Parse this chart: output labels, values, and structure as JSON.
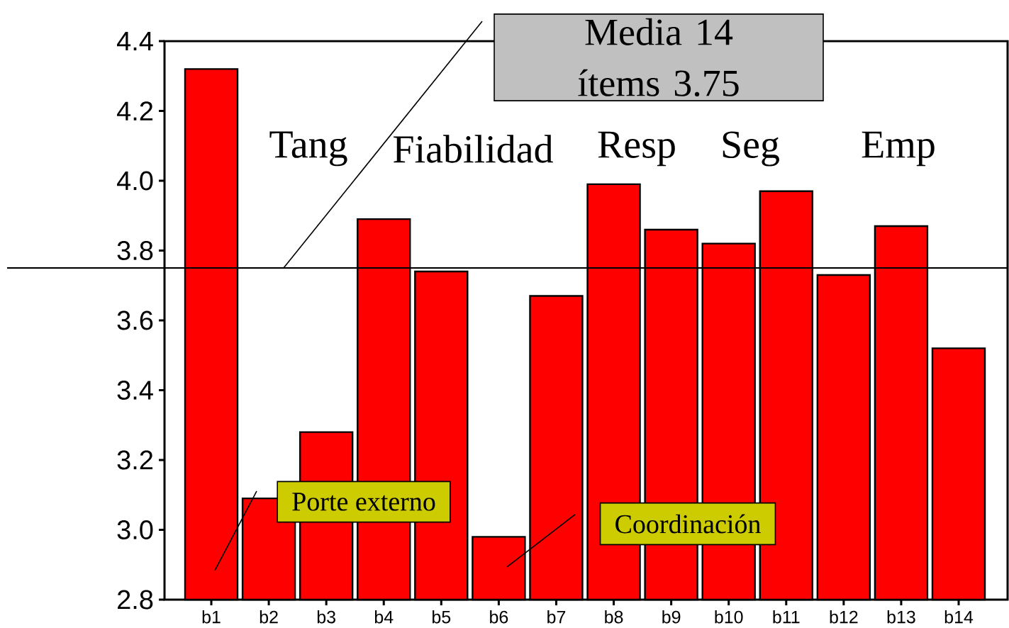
{
  "chart_data": {
    "type": "bar",
    "categories": [
      "b1",
      "b2",
      "b3",
      "b4",
      "b5",
      "b6",
      "b7",
      "b8",
      "b9",
      "b10",
      "b11",
      "b12",
      "b13",
      "b14"
    ],
    "values": [
      4.32,
      3.09,
      3.28,
      3.89,
      3.74,
      2.98,
      3.67,
      3.99,
      3.86,
      3.82,
      3.97,
      3.73,
      3.87,
      3.52
    ],
    "color": "#ff0000",
    "ylim": [
      2.8,
      4.4
    ],
    "yticks": [
      2.8,
      {
        "value": 3,
        "label": "3.0"
      },
      3.2,
      3.4,
      3.6,
      3.8,
      {
        "value": 4,
        "label": "4.0"
      },
      4.2,
      4.4
    ],
    "ref_lines": [
      {
        "axis": "y",
        "value": 3.75,
        "label": "Media 14 ítems 3.75"
      }
    ],
    "annotations": [
      "Tang",
      "Fiabilidad",
      "Resp",
      "Seg",
      "Emp",
      "Porte externo",
      "Coordinación"
    ]
  }
}
